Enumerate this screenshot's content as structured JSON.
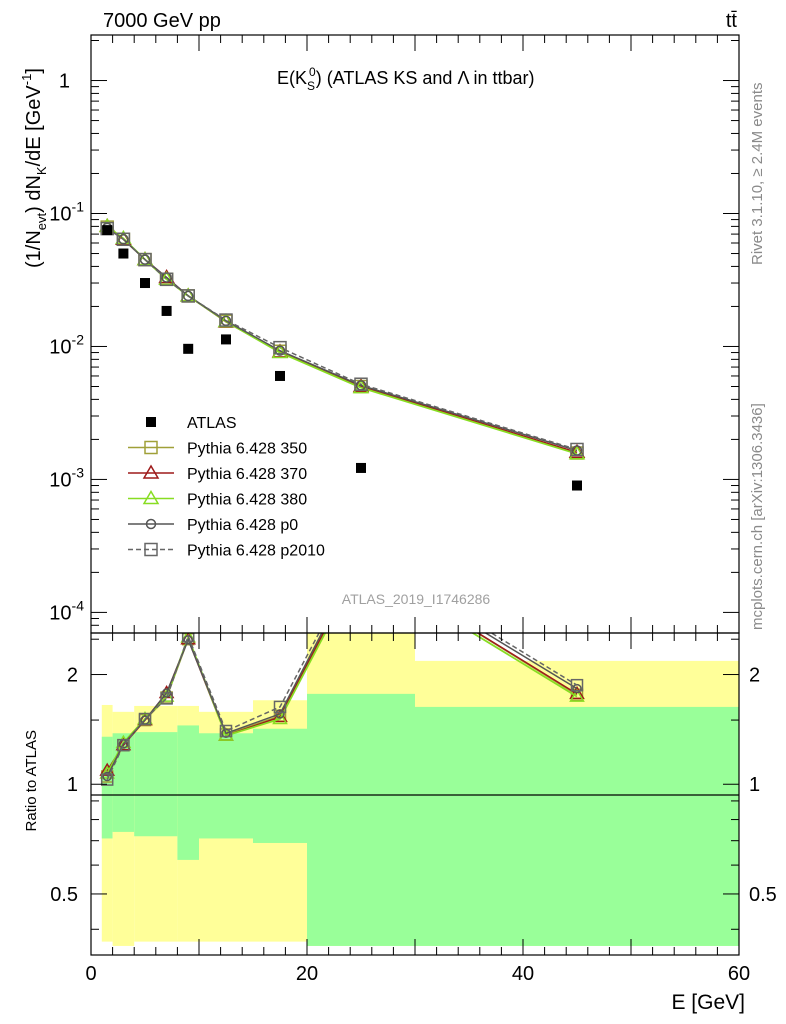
{
  "header": {
    "left": "7000 GeV pp",
    "right": "tt̄"
  },
  "side_labels": {
    "rivet": "Rivet 3.1.10, ≥ 2.4M events",
    "mcplots": "mcplots.cern.ch [arXiv:1306.3436]"
  },
  "watermark": "ATLAS_2019_I1746286",
  "chart_data": [
    {
      "type": "scatter",
      "title": "E(K_S^0) (ATLAS KS and Λ in ttbar)",
      "title_parts": {
        "main": "E(K",
        "sub": "S",
        "sup": "0",
        "rest": ") (ATLAS KS and Λ in ttbar)"
      },
      "ylabel": "(1/N_evt) dN_K/dE [GeV^-1]",
      "ylabel_parts": {
        "a": "(1/N",
        "a_sub": "evt",
        "b": ") dN",
        "b_sub": "K",
        "c": "/dE [GeV",
        "c_sup": "-1",
        "d": "]"
      },
      "yscale": "log",
      "xlim": [
        0,
        60
      ],
      "ylim": [
        7e-05,
        2.2
      ],
      "y_tick_labels": [
        "1",
        "10^-1",
        "10^-2",
        "10^-3",
        "10^-4"
      ],
      "legend_position": "lower-left",
      "series": [
        {
          "name": "ATLAS",
          "color": "#000000",
          "marker": "filled-square",
          "x": [
            1.5,
            3,
            5,
            7,
            9,
            12.5,
            17.5,
            25,
            45
          ],
          "y": [
            0.075,
            0.05,
            0.03,
            0.0185,
            0.0096,
            0.0113,
            0.006,
            0.00122,
            0.0009
          ]
        },
        {
          "name": "Pythia 6.428 350",
          "color": "#a0a038",
          "marker": "open-square",
          "line": "solid",
          "x": [
            1.5,
            3,
            5,
            7,
            9,
            12.5,
            17.5,
            25,
            45
          ],
          "y": [
            0.079,
            0.064,
            0.045,
            0.032,
            0.024,
            0.0155,
            0.0092,
            0.005,
            0.00158
          ]
        },
        {
          "name": "Pythia 6.428 370",
          "color": "#9e1a1a",
          "marker": "open-triangle",
          "line": "solid",
          "x": [
            1.5,
            3,
            5,
            7,
            9,
            12.5,
            17.5,
            25,
            45
          ],
          "y": [
            0.08,
            0.064,
            0.045,
            0.033,
            0.024,
            0.0153,
            0.0091,
            0.005,
            0.0016
          ]
        },
        {
          "name": "Pythia 6.428 380",
          "color": "#88dd22",
          "marker": "open-triangle",
          "line": "solid",
          "x": [
            1.5,
            3,
            5,
            7,
            9,
            12.5,
            17.5,
            25,
            45
          ],
          "y": [
            0.08,
            0.065,
            0.045,
            0.032,
            0.024,
            0.0154,
            0.009,
            0.0049,
            0.00156
          ]
        },
        {
          "name": "Pythia 6.428 p0",
          "color": "#555555",
          "marker": "open-circle",
          "line": "solid",
          "x": [
            1.5,
            3,
            5,
            7,
            9,
            12.5,
            17.5,
            25,
            45
          ],
          "y": [
            0.078,
            0.064,
            0.045,
            0.033,
            0.024,
            0.0156,
            0.0093,
            0.0051,
            0.00165
          ]
        },
        {
          "name": "Pythia 6.428 p2010",
          "color": "#666666",
          "marker": "open-square",
          "line": "dashed",
          "x": [
            1.5,
            3,
            5,
            7,
            9,
            12.5,
            17.5,
            25,
            45
          ],
          "y": [
            0.077,
            0.064,
            0.045,
            0.032,
            0.024,
            0.0158,
            0.0098,
            0.0052,
            0.00168
          ]
        }
      ]
    },
    {
      "type": "line",
      "xlabel": "E [GeV]",
      "ylabel": "Ratio to ATLAS",
      "yscale": "log",
      "xlim": [
        0,
        60
      ],
      "ylim": [
        0.34,
        2.6
      ],
      "x_ticks": [
        0,
        20,
        40,
        60
      ],
      "y_ticks": [
        0.5,
        1,
        2
      ],
      "reference_line": 1,
      "bands": [
        {
          "x0": 1,
          "x1": 2,
          "yellow": [
            0.37,
            1.65
          ],
          "green": [
            0.71,
            1.35
          ]
        },
        {
          "x0": 2,
          "x1": 4,
          "yellow": [
            0.36,
            1.58
          ],
          "green": [
            0.74,
            1.38
          ]
        },
        {
          "x0": 4,
          "x1": 8,
          "yellow": [
            0.37,
            1.64
          ],
          "green": [
            0.72,
            1.39
          ]
        },
        {
          "x0": 8,
          "x1": 10,
          "yellow": [
            0.37,
            1.64
          ],
          "green": [
            0.62,
            1.45
          ]
        },
        {
          "x0": 10,
          "x1": 15,
          "yellow": [
            0.37,
            1.58
          ],
          "green": [
            0.71,
            1.38
          ]
        },
        {
          "x0": 15,
          "x1": 20,
          "yellow": [
            0.37,
            1.7
          ],
          "green": [
            0.69,
            1.42
          ]
        },
        {
          "x0": 20,
          "x1": 30,
          "yellow": [
            0.36,
            2.6
          ],
          "green": [
            0.36,
            1.77
          ]
        },
        {
          "x0": 30,
          "x1": 60,
          "yellow": [
            0.36,
            2.18
          ],
          "green": [
            0.36,
            1.63
          ]
        }
      ],
      "series": [
        {
          "name": "Pythia 6.428 350",
          "x": [
            1.5,
            3,
            5,
            7,
            9,
            12.5,
            17.5,
            25,
            45
          ],
          "y": [
            1.05,
            1.28,
            1.5,
            1.73,
            2.5,
            1.37,
            1.54,
            4.1,
            1.76
          ]
        },
        {
          "name": "Pythia 6.428 370",
          "x": [
            1.5,
            3,
            5,
            7,
            9,
            12.5,
            17.5,
            25,
            45
          ],
          "y": [
            1.09,
            1.28,
            1.5,
            1.78,
            2.5,
            1.36,
            1.53,
            4.1,
            1.77
          ]
        },
        {
          "name": "Pythia 6.428 380",
          "x": [
            1.5,
            3,
            5,
            7,
            9,
            12.5,
            17.5,
            25,
            45
          ],
          "y": [
            1.07,
            1.3,
            1.51,
            1.74,
            2.53,
            1.36,
            1.51,
            4.0,
            1.74
          ]
        },
        {
          "name": "Pythia 6.428 p0",
          "x": [
            1.5,
            3,
            5,
            7,
            9,
            12.5,
            17.5,
            25,
            45
          ],
          "y": [
            1.05,
            1.29,
            1.5,
            1.78,
            2.49,
            1.38,
            1.56,
            4.2,
            1.83
          ]
        },
        {
          "name": "Pythia 6.428 p2010",
          "x": [
            1.5,
            3,
            5,
            7,
            9,
            12.5,
            17.5,
            25,
            45
          ],
          "y": [
            1.03,
            1.28,
            1.51,
            1.72,
            2.55,
            1.4,
            1.63,
            4.3,
            1.87
          ]
        }
      ]
    }
  ]
}
